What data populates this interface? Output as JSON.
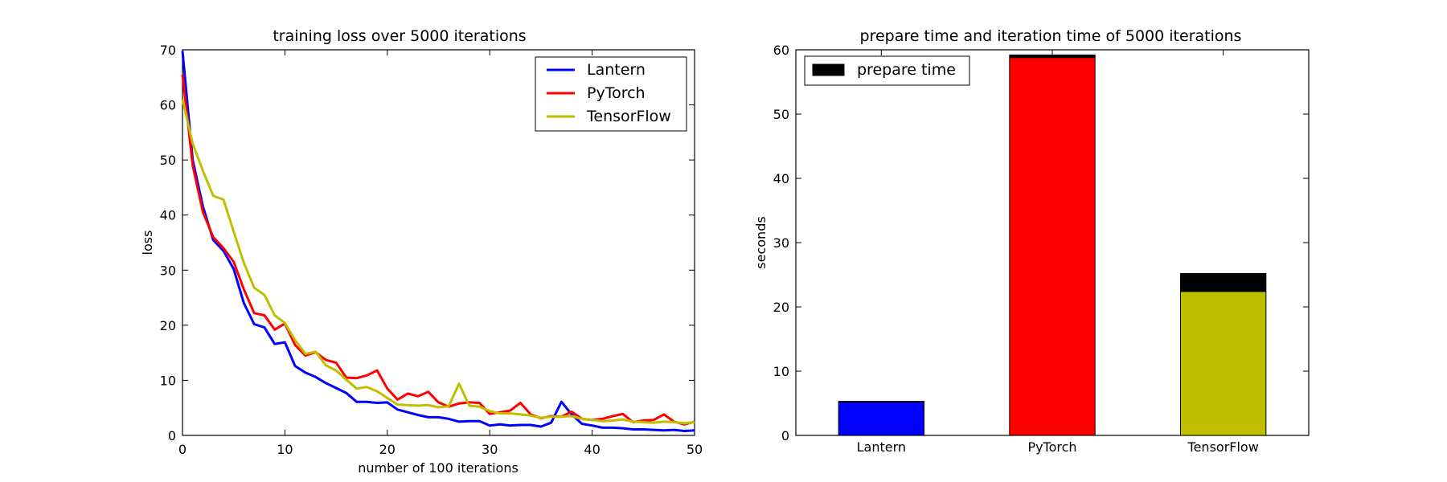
{
  "chart_data": [
    {
      "type": "line",
      "title": "training loss over 5000 iterations",
      "xlabel": "number of  100 iterations",
      "ylabel": "loss",
      "xlim": [
        0,
        50
      ],
      "ylim": [
        0,
        70
      ],
      "xticks": [
        0,
        10,
        20,
        30,
        40,
        50
      ],
      "yticks": [
        0,
        10,
        20,
        30,
        40,
        50,
        60,
        70
      ],
      "grid": false,
      "legend_position": "top-right",
      "x": [
        0,
        1,
        2,
        3,
        4,
        5,
        6,
        7,
        8,
        9,
        10,
        11,
        12,
        13,
        14,
        15,
        16,
        17,
        18,
        19,
        20,
        21,
        22,
        23,
        24,
        25,
        26,
        27,
        28,
        29,
        30,
        31,
        32,
        33,
        34,
        35,
        36,
        37,
        38,
        39,
        40,
        41,
        42,
        43,
        44,
        45,
        46,
        47,
        48,
        49,
        50
      ],
      "series": [
        {
          "name": "Lantern",
          "color": "#0000ff",
          "values": [
            69.8,
            50.0,
            41.5,
            35.5,
            33.5,
            30.2,
            24.0,
            20.2,
            19.6,
            16.6,
            16.9,
            12.6,
            11.4,
            10.6,
            9.5,
            8.6,
            7.7,
            6.1,
            6.1,
            5.9,
            6.0,
            4.7,
            4.2,
            3.7,
            3.3,
            3.3,
            3.0,
            2.5,
            2.6,
            2.6,
            1.8,
            2.0,
            1.8,
            1.9,
            1.9,
            1.6,
            2.3,
            6.1,
            3.8,
            2.1,
            1.8,
            1.4,
            1.4,
            1.3,
            1.1,
            1.1,
            1.0,
            0.9,
            1.0,
            0.8,
            0.9
          ]
        },
        {
          "name": "PyTorch",
          "color": "#ff0000",
          "values": [
            65.5,
            49.0,
            40.5,
            36.0,
            34.0,
            31.5,
            26.5,
            22.2,
            21.8,
            19.2,
            20.3,
            16.4,
            14.5,
            15.1,
            13.7,
            13.2,
            10.5,
            10.4,
            10.9,
            11.8,
            8.5,
            6.5,
            7.6,
            7.1,
            7.9,
            6.0,
            5.2,
            5.8,
            6.0,
            5.9,
            3.9,
            4.2,
            4.5,
            5.9,
            3.8,
            3.1,
            3.5,
            3.4,
            4.3,
            3.0,
            2.8,
            3.0,
            3.5,
            3.9,
            2.4,
            2.7,
            2.8,
            3.8,
            2.5,
            2.0,
            2.5
          ]
        },
        {
          "name": "TensorFlow",
          "color": "#bfbf00",
          "values": [
            61.0,
            53.0,
            48.0,
            43.5,
            42.8,
            37.0,
            31.3,
            26.8,
            25.5,
            21.8,
            20.4,
            17.3,
            14.8,
            15.2,
            12.7,
            11.8,
            10.1,
            8.5,
            8.8,
            8.0,
            6.8,
            5.6,
            5.5,
            5.4,
            5.5,
            5.1,
            5.3,
            9.4,
            5.4,
            5.2,
            4.4,
            4.0,
            4.0,
            3.8,
            3.6,
            3.2,
            3.4,
            3.4,
            3.5,
            3.0,
            2.8,
            2.6,
            2.7,
            2.9,
            2.5,
            2.4,
            2.3,
            2.5,
            2.4,
            2.2,
            2.4
          ]
        }
      ]
    },
    {
      "type": "bar",
      "stacked": true,
      "title": "prepare time and iteration time of 5000 iterations",
      "xlabel": "",
      "ylabel": "seconds",
      "ylim": [
        0,
        60
      ],
      "yticks": [
        0,
        10,
        20,
        30,
        40,
        50,
        60
      ],
      "grid": false,
      "legend_position": "top-left",
      "categories": [
        "Lantern",
        "PyTorch",
        "TensorFlow"
      ],
      "bar_colors": [
        "#0000ff",
        "#ff0000",
        "#bfbf00"
      ],
      "series": [
        {
          "color_mode": "per-category",
          "values": [
            5.2,
            58.8,
            22.4
          ]
        },
        {
          "name": "prepare time",
          "color": "#000000",
          "values": [
            0.1,
            0.4,
            2.8
          ]
        }
      ]
    }
  ]
}
